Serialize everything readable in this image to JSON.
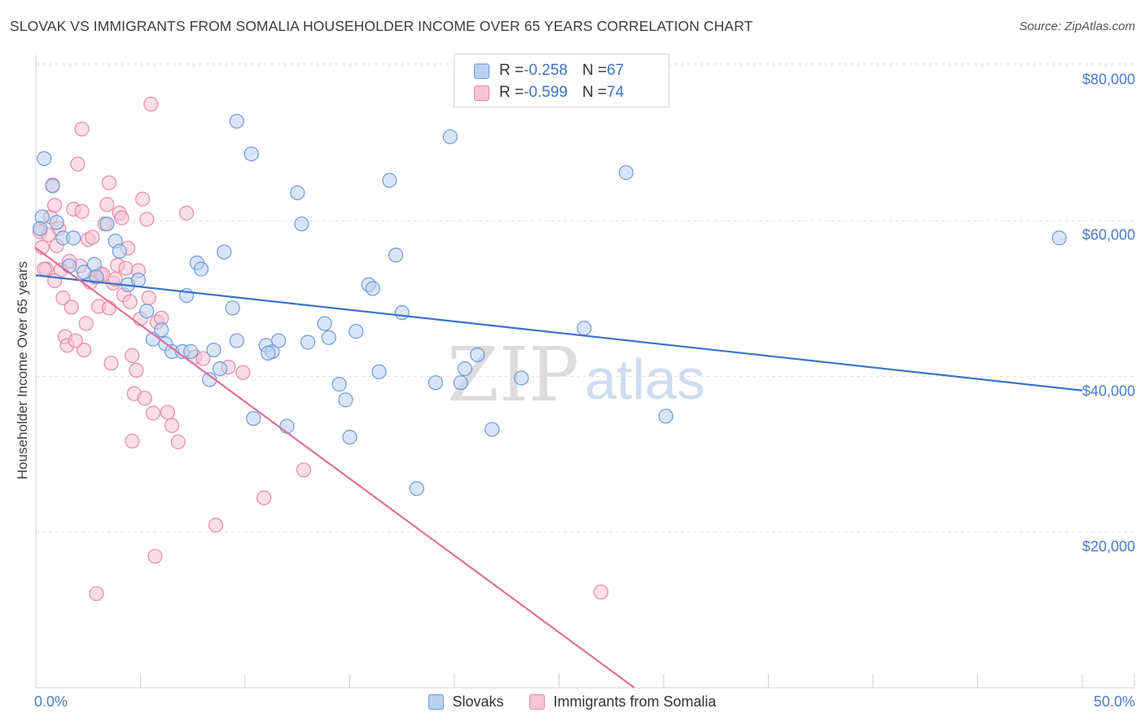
{
  "title": "SLOVAK VS IMMIGRANTS FROM SOMALIA HOUSEHOLDER INCOME OVER 65 YEARS CORRELATION CHART",
  "source": "Source: ZipAtlas.com",
  "watermark": {
    "zip": "ZIP",
    "atlas": "atlas"
  },
  "legend_top": [
    {
      "r_label": "R = ",
      "r_value": "-0.258",
      "n_label": "N = ",
      "n_value": "67"
    },
    {
      "r_label": "R = ",
      "r_value": "-0.599",
      "n_label": "N = ",
      "n_value": "74"
    }
  ],
  "legend_bottom": [
    "Slovaks",
    "Immigrants from Somalia"
  ],
  "colors": {
    "blue_fill": "#b9d0f0",
    "blue_stroke": "#6e9ad8",
    "blue_line": "#3a74cc",
    "pink_fill": "#f6c3d3",
    "pink_stroke": "#e68aa8",
    "pink_line": "#e0709a",
    "grid": "#e3e3e3",
    "axis_text": "#4a7cc8"
  },
  "chart_data": {
    "type": "scatter",
    "xlabel": "",
    "ylabel": "Householder Income Over 65 years",
    "xlim": [
      0,
      50
    ],
    "ylim": [
      0,
      82000
    ],
    "x_tick_labels": [
      "0.0%",
      "50.0%"
    ],
    "y_ticks": [
      20000,
      40000,
      60000,
      80000
    ],
    "y_tick_labels": [
      "$20,000",
      "$40,000",
      "$60,000",
      "$80,000"
    ],
    "grid": true,
    "series": [
      {
        "name": "Slovaks",
        "color": "blue",
        "trend": {
          "x": [
            0,
            50
          ],
          "y": [
            53000,
            38200
          ]
        },
        "points": [
          [
            0.4,
            68000
          ],
          [
            0.8,
            64500
          ],
          [
            0.3,
            60500
          ],
          [
            1.0,
            59800
          ],
          [
            1.3,
            57800
          ],
          [
            1.8,
            57800
          ],
          [
            3.4,
            59600
          ],
          [
            3.8,
            57400
          ],
          [
            4.0,
            56100
          ],
          [
            1.6,
            54200
          ],
          [
            2.3,
            53400
          ],
          [
            2.8,
            54400
          ],
          [
            2.9,
            52800
          ],
          [
            4.4,
            51800
          ],
          [
            4.9,
            52400
          ],
          [
            5.3,
            48400
          ],
          [
            7.7,
            54600
          ],
          [
            7.9,
            53800
          ],
          [
            9.0,
            56000
          ],
          [
            7.2,
            50400
          ],
          [
            9.4,
            48800
          ],
          [
            5.6,
            44800
          ],
          [
            6.0,
            46000
          ],
          [
            6.2,
            44200
          ],
          [
            6.5,
            43200
          ],
          [
            7.0,
            43200
          ],
          [
            7.4,
            43200
          ],
          [
            8.5,
            43400
          ],
          [
            8.8,
            41000
          ],
          [
            8.3,
            39600
          ],
          [
            9.6,
            44600
          ],
          [
            10.4,
            34600
          ],
          [
            11.0,
            44000
          ],
          [
            11.3,
            43200
          ],
          [
            11.1,
            43000
          ],
          [
            11.6,
            44600
          ],
          [
            12.0,
            33600
          ],
          [
            12.5,
            63600
          ],
          [
            12.7,
            59600
          ],
          [
            13.0,
            44400
          ],
          [
            13.8,
            46800
          ],
          [
            14.0,
            45000
          ],
          [
            14.5,
            39000
          ],
          [
            14.8,
            37000
          ],
          [
            15.0,
            32200
          ],
          [
            15.3,
            45800
          ],
          [
            15.9,
            51800
          ],
          [
            16.1,
            51300
          ],
          [
            16.4,
            40600
          ],
          [
            16.9,
            65200
          ],
          [
            17.2,
            55600
          ],
          [
            17.5,
            48200
          ],
          [
            18.2,
            25600
          ],
          [
            19.1,
            39200
          ],
          [
            19.8,
            70800
          ],
          [
            20.3,
            39200
          ],
          [
            20.5,
            41000
          ],
          [
            21.1,
            42800
          ],
          [
            21.8,
            33200
          ],
          [
            23.2,
            39800
          ],
          [
            26.2,
            46200
          ],
          [
            28.2,
            66200
          ],
          [
            30.1,
            34900
          ],
          [
            9.6,
            72800
          ],
          [
            10.3,
            68600
          ],
          [
            48.9,
            57800
          ],
          [
            0.2,
            59000
          ]
        ]
      },
      {
        "name": "Immigrants from Somalia",
        "color": "pink",
        "trend": {
          "x": [
            0,
            28.6
          ],
          "y": [
            56500,
            0
          ]
        },
        "points": [
          [
            0.2,
            58600
          ],
          [
            0.3,
            56600
          ],
          [
            0.5,
            53800
          ],
          [
            0.7,
            60500
          ],
          [
            0.8,
            64600
          ],
          [
            0.9,
            62000
          ],
          [
            1.0,
            56800
          ],
          [
            1.2,
            53700
          ],
          [
            1.3,
            50100
          ],
          [
            1.4,
            45100
          ],
          [
            1.5,
            44000
          ],
          [
            1.7,
            48900
          ],
          [
            1.8,
            61500
          ],
          [
            2.0,
            67300
          ],
          [
            2.1,
            54200
          ],
          [
            2.2,
            71800
          ],
          [
            2.3,
            43400
          ],
          [
            2.4,
            46800
          ],
          [
            2.5,
            57600
          ],
          [
            2.7,
            57900
          ],
          [
            2.8,
            52800
          ],
          [
            3.0,
            49000
          ],
          [
            3.1,
            53200
          ],
          [
            3.3,
            59600
          ],
          [
            3.4,
            62100
          ],
          [
            3.5,
            64900
          ],
          [
            3.6,
            41700
          ],
          [
            3.7,
            52000
          ],
          [
            3.9,
            54300
          ],
          [
            4.0,
            61000
          ],
          [
            4.1,
            60400
          ],
          [
            4.2,
            50500
          ],
          [
            4.3,
            53900
          ],
          [
            4.4,
            56500
          ],
          [
            4.5,
            49600
          ],
          [
            4.6,
            42700
          ],
          [
            4.7,
            37800
          ],
          [
            4.8,
            40800
          ],
          [
            4.9,
            53600
          ],
          [
            5.0,
            47400
          ],
          [
            5.1,
            62800
          ],
          [
            5.2,
            37200
          ],
          [
            5.3,
            60200
          ],
          [
            5.4,
            50100
          ],
          [
            5.5,
            75000
          ],
          [
            5.6,
            35300
          ],
          [
            5.7,
            16900
          ],
          [
            5.8,
            47000
          ],
          [
            6.0,
            47500
          ],
          [
            6.3,
            35400
          ],
          [
            6.5,
            33700
          ],
          [
            6.8,
            31600
          ],
          [
            7.2,
            61000
          ],
          [
            7.6,
            42500
          ],
          [
            8.0,
            42300
          ],
          [
            8.6,
            20900
          ],
          [
            9.2,
            41200
          ],
          [
            9.9,
            40500
          ],
          [
            10.9,
            24400
          ],
          [
            12.8,
            28000
          ],
          [
            1.1,
            59000
          ],
          [
            0.4,
            53800
          ],
          [
            2.6,
            52100
          ],
          [
            3.2,
            53100
          ],
          [
            3.8,
            52500
          ],
          [
            1.6,
            54800
          ],
          [
            0.6,
            58200
          ],
          [
            27.0,
            12300
          ],
          [
            2.9,
            12100
          ],
          [
            4.6,
            31700
          ],
          [
            1.9,
            44600
          ],
          [
            0.9,
            52300
          ],
          [
            3.5,
            48800
          ],
          [
            2.2,
            61200
          ]
        ]
      }
    ]
  }
}
